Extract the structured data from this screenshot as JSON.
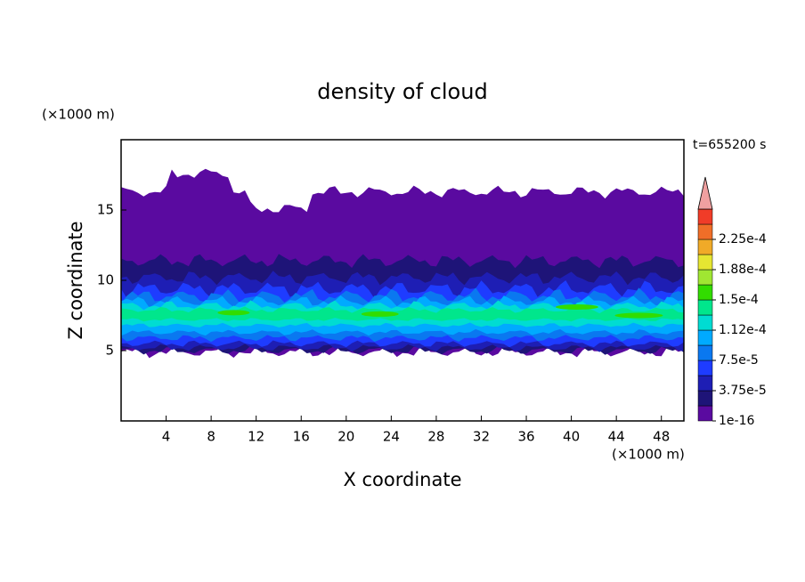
{
  "chart_data": {
    "type": "contour",
    "title": "density of cloud",
    "x_label": "X coordinate",
    "y_label": "Z coordinate",
    "x_unit": "(×1000 m)",
    "y_unit": "(×1000 m)",
    "time_label": "t=655200 s",
    "xlim": [
      0,
      50
    ],
    "ylim": [
      0,
      20
    ],
    "xticks": [
      4,
      8,
      12,
      16,
      20,
      24,
      28,
      32,
      36,
      40,
      44,
      48
    ],
    "yticks": [
      5,
      10,
      15
    ],
    "colorbar": {
      "ticks": [
        {
          "value": 1e-16,
          "label": "1e-16"
        },
        {
          "value": 3.75e-05,
          "label": "3.75e-5"
        },
        {
          "value": 7.5e-05,
          "label": "7.5e-5"
        },
        {
          "value": 0.000112,
          "label": "1.12e-4"
        },
        {
          "value": 0.00015,
          "label": "1.5e-4"
        },
        {
          "value": 0.000188,
          "label": "1.88e-4"
        },
        {
          "value": 0.000225,
          "label": "2.25e-4"
        }
      ],
      "colors": [
        "#5a0aa0",
        "#1e1478",
        "#1e1eb4",
        "#1e3cff",
        "#0a78f0",
        "#00aaff",
        "#00dcd2",
        "#00e68c",
        "#32dc00",
        "#a0e632",
        "#e6e632",
        "#f0aa28",
        "#f06e28",
        "#f03c28"
      ],
      "extend_color": "#f0a0a0"
    }
  }
}
